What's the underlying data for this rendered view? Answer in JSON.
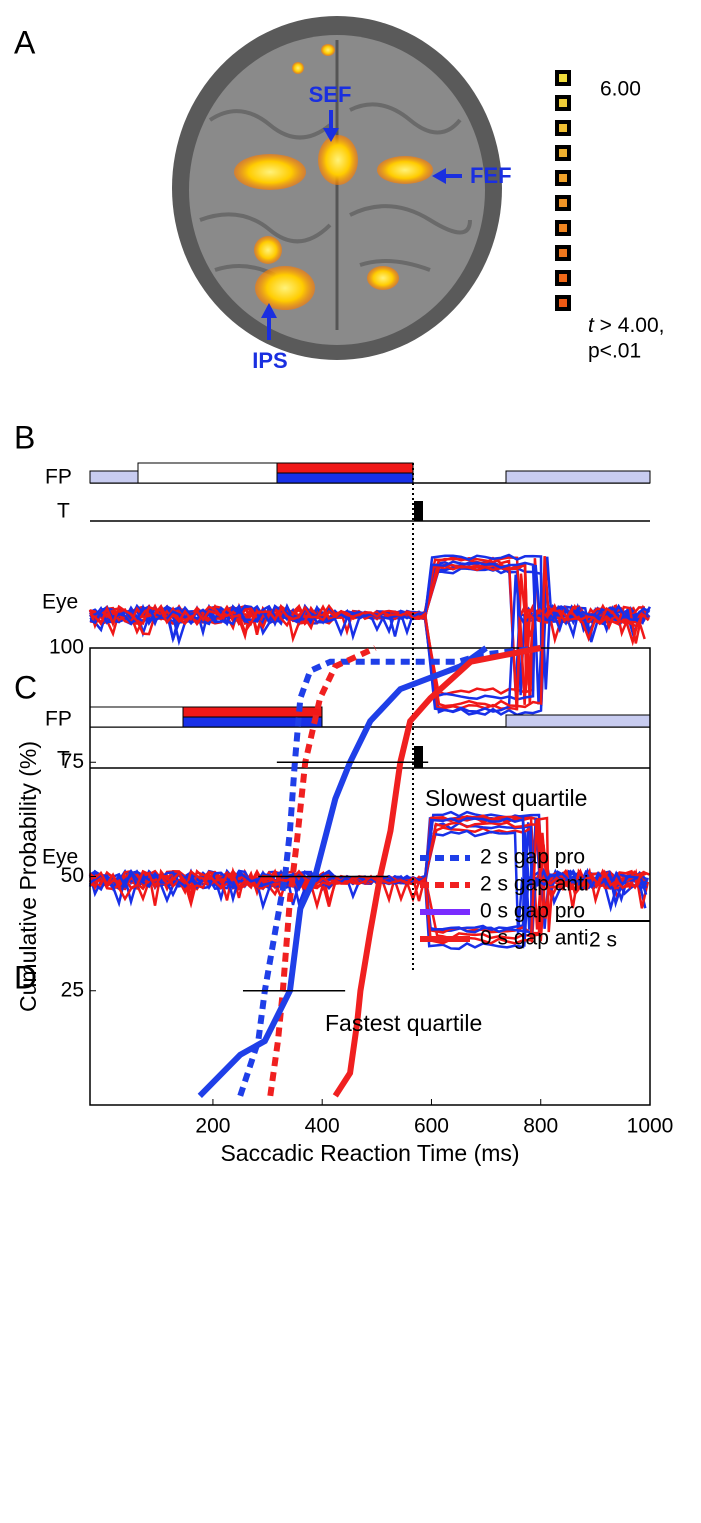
{
  "panel_labels": [
    "A",
    "B",
    "C",
    "D"
  ],
  "brain": {
    "regions": [
      "SEF",
      "FEF",
      "IPS"
    ],
    "scale_max": "6.00",
    "threshold_var": "t",
    "threshold_text": " > 4.00,",
    "threshold_p": "p<.01"
  },
  "timing_panels": [
    {
      "fp": "FP",
      "t": "T",
      "eye": "Eye"
    },
    {
      "fp": "FP",
      "t": "T",
      "eye": "Eye",
      "scale_bar": "2 s"
    }
  ],
  "chart_data": {
    "type": "line",
    "xlabel": "Saccadic Reaction Time (ms)",
    "ylabel": "Cumulative Probability (%)",
    "xlim": [
      -25,
      1000
    ],
    "ylim": [
      0,
      100
    ],
    "xticks": [
      200,
      400,
      600,
      800,
      1000
    ],
    "yticks": [
      25,
      50,
      75,
      100
    ],
    "series": [
      {
        "name": "2 s gap pro",
        "color": "#1f3fe8",
        "line_style": "dashed",
        "x": [
          250,
          283,
          295,
          314,
          332,
          341,
          350,
          360,
          378,
          415,
          650,
          690,
          800
        ],
        "values": [
          2,
          14,
          25,
          38,
          50,
          60,
          75,
          89,
          95,
          97,
          97,
          98.5,
          100
        ]
      },
      {
        "name": "2 s gap anti",
        "color": "#f02020",
        "line_style": "dashed",
        "x": [
          305,
          319,
          328,
          341,
          354,
          369,
          396,
          424,
          497
        ],
        "values": [
          2,
          14,
          25,
          45,
          58,
          75,
          89,
          96,
          100
        ]
      },
      {
        "name": "0 s gap pro",
        "color": "#1f3fe8",
        "legend_color": "#7a2cff",
        "line_style": "solid",
        "x": [
          176,
          250,
          295,
          341,
          360,
          387,
          424,
          451,
          488,
          543,
          653,
          700
        ],
        "values": [
          2,
          11,
          14,
          25,
          43,
          50,
          67,
          75,
          84,
          91,
          96,
          100
        ]
      },
      {
        "name": "0 s gap anti",
        "color": "#f02020",
        "line_style": "solid",
        "x": [
          424,
          451,
          464,
          470,
          488,
          506,
          525,
          543,
          561,
          598,
          672,
          800
        ],
        "values": [
          2,
          7,
          18,
          25,
          38,
          50,
          60,
          75,
          84,
          89,
          97,
          100
        ]
      }
    ],
    "reference_lines": [
      {
        "y": 75,
        "x": [
          317,
          594
        ]
      },
      {
        "y": 50,
        "x": [
          283,
          521
        ]
      },
      {
        "y": 25,
        "x": [
          255,
          442
        ]
      }
    ],
    "annotations": [
      "Slowest quartile",
      "Fastest quartile"
    ]
  }
}
